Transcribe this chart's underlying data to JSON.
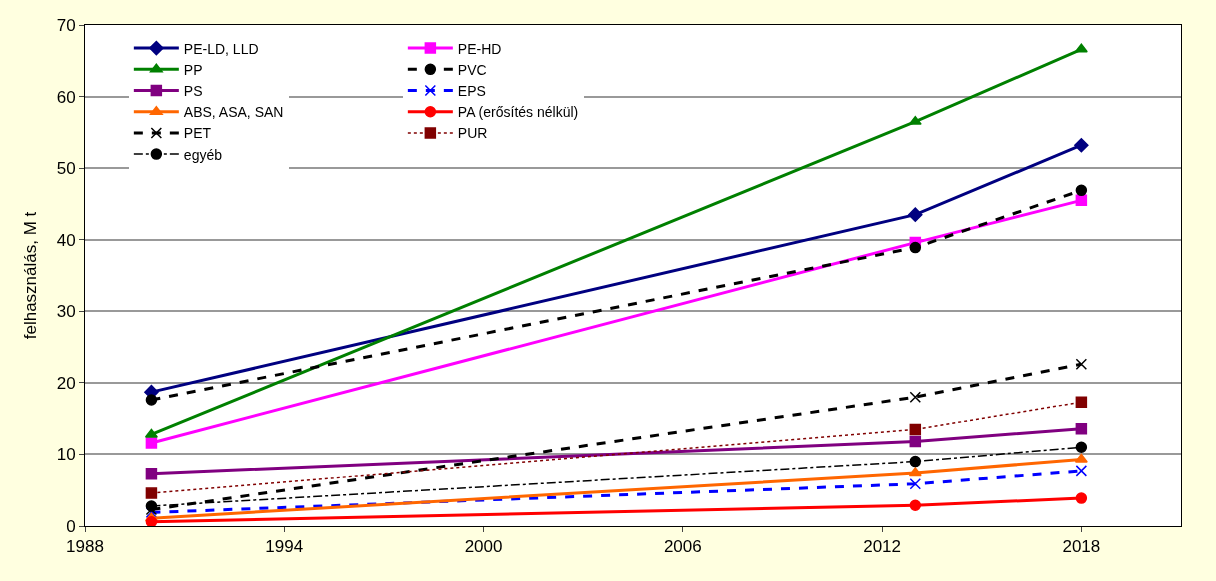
{
  "chart_data": {
    "type": "line",
    "ylabel": "felhasználás, M t",
    "xlim": [
      1988,
      2021
    ],
    "xticks": [
      1988,
      1994,
      2000,
      2006,
      2012,
      2018
    ],
    "ylim": [
      0,
      70
    ],
    "yticks": [
      0,
      10,
      20,
      30,
      40,
      50,
      60,
      70
    ],
    "grid": "y",
    "legend": "top left",
    "x": [
      1990,
      2013,
      2018
    ],
    "series": [
      {
        "name": "PE-LD, LLD",
        "color": "#000080",
        "marker": "diamond",
        "line_style": "solid",
        "values": [
          18.7,
          43.5,
          53.2
        ]
      },
      {
        "name": "PE-HD",
        "color": "#ff00ff",
        "marker": "square",
        "line_style": "solid",
        "values": [
          11.6,
          39.6,
          45.5
        ]
      },
      {
        "name": "PP",
        "color": "#008000",
        "marker": "triangle",
        "line_style": "solid",
        "values": [
          12.8,
          56.5,
          66.6
        ]
      },
      {
        "name": "PVC",
        "color": "#000000",
        "marker": "circle",
        "line_style": "dashed",
        "values": [
          17.6,
          38.9,
          46.9
        ]
      },
      {
        "name": "PS",
        "color": "#800080",
        "marker": "square",
        "line_style": "solid",
        "values": [
          7.3,
          11.8,
          13.6
        ]
      },
      {
        "name": "EPS",
        "color": "#0000ff",
        "marker": "cross",
        "line_style": "dashed",
        "values": [
          1.9,
          5.9,
          7.7
        ]
      },
      {
        "name": "ABS, ASA, SAN",
        "color": "#ff6600",
        "marker": "triangle",
        "line_style": "solid",
        "values": [
          1.1,
          7.4,
          9.3
        ]
      },
      {
        "name": "PA (erősítés nélkül)",
        "color": "#ff0000",
        "marker": "circle",
        "line_style": "solid",
        "values": [
          0.6,
          2.9,
          3.9
        ]
      },
      {
        "name": "PET",
        "color": "#000000",
        "marker": "cross",
        "line_style": "dashed",
        "values": [
          2.3,
          18.0,
          22.6
        ]
      },
      {
        "name": "PUR",
        "color": "#800000",
        "marker": "square",
        "line_style": "dotted",
        "values": [
          4.6,
          13.5,
          17.3
        ]
      },
      {
        "name": "egyéb",
        "color": "#000000",
        "marker": "circle",
        "line_style": "dashdot",
        "values": [
          2.8,
          9.0,
          11.0
        ]
      }
    ]
  }
}
